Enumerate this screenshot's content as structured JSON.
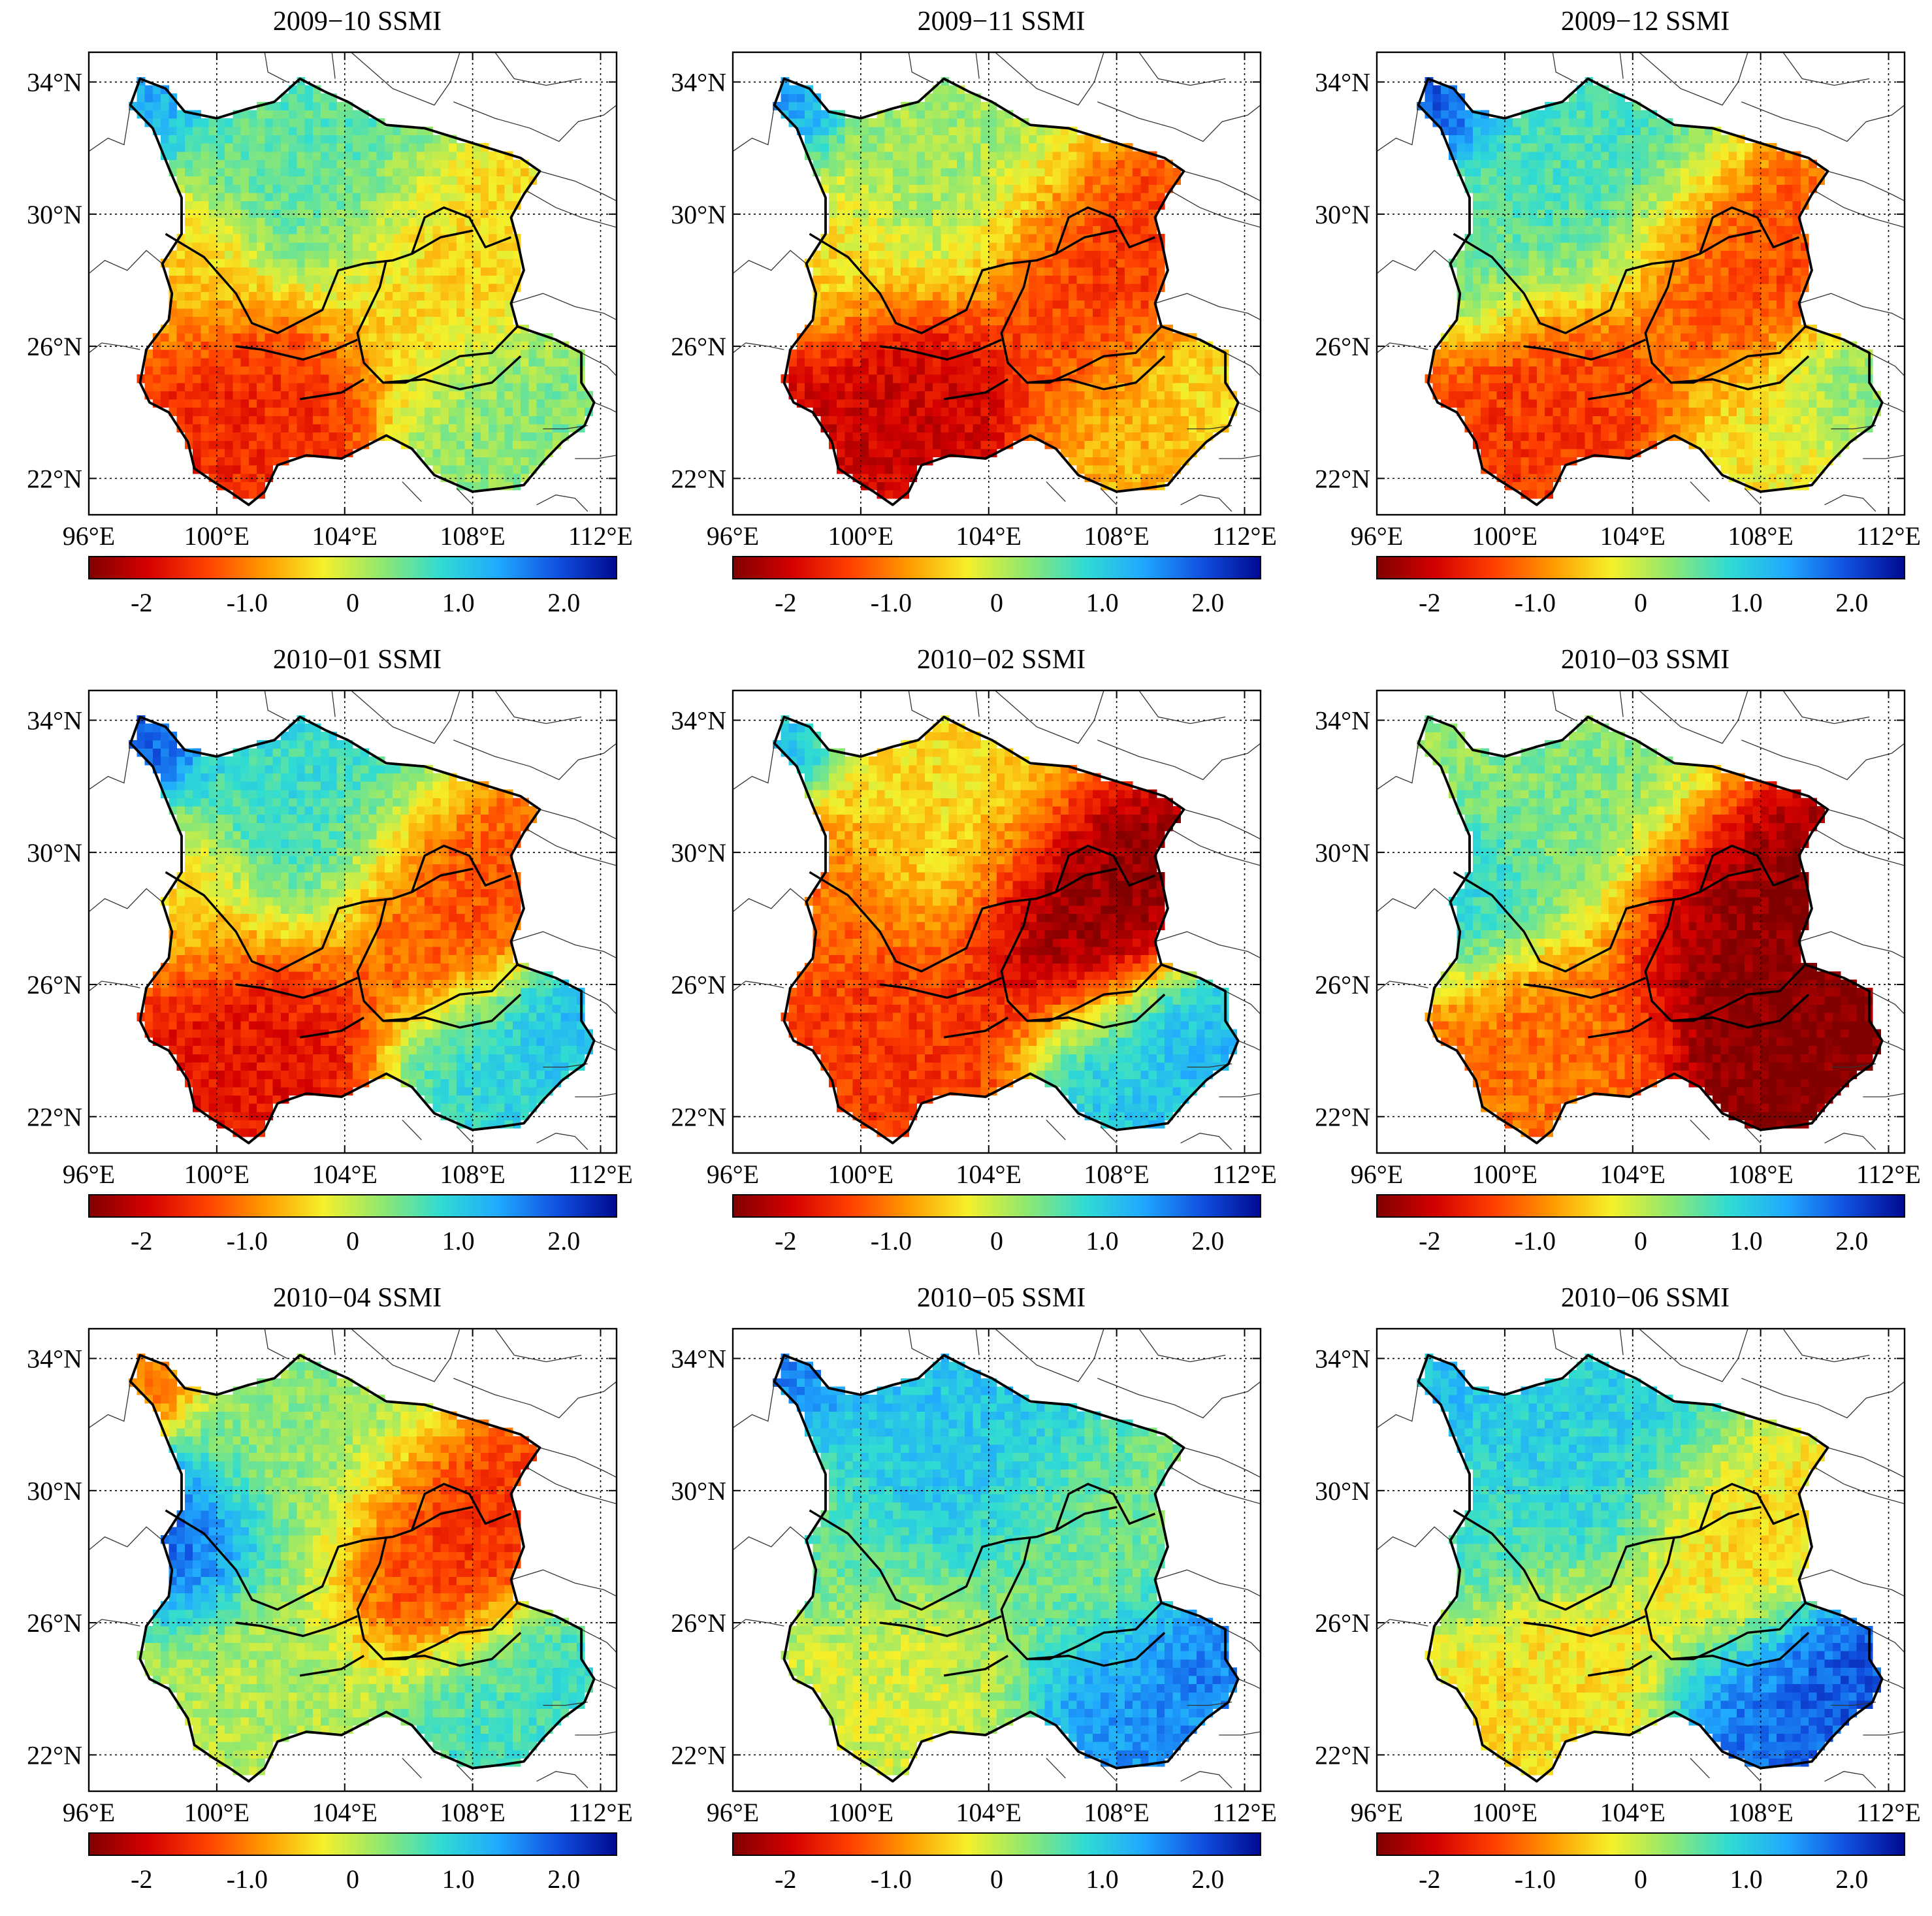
{
  "figure": {
    "lat_ticks": [
      "34°N",
      "30°N",
      "26°N",
      "22°N"
    ],
    "lon_ticks": [
      "96°E",
      "100°E",
      "104°E",
      "108°E",
      "112°E"
    ],
    "colorbar": {
      "labels": [
        "-2",
        "-1.0",
        "0",
        "1.0",
        "2.0"
      ],
      "colors": [
        "#800000",
        "#d40000",
        "#ff4000",
        "#ff9a00",
        "#f5f02a",
        "#8fe870",
        "#30dcd2",
        "#20a8ff",
        "#1050e0",
        "#000a90"
      ]
    }
  },
  "chart_data": [
    {
      "type": "heatmap",
      "title": "2009−10 SSMI",
      "lon_range": [
        96,
        112
      ],
      "lat_range": [
        21,
        35
      ],
      "colorbar_range": [
        -2.5,
        2.5
      ],
      "pattern": {
        "north": 0.6,
        "northwest_corner": 1.4,
        "west": -0.6,
        "south_west": -1.6,
        "south_east": 0.3,
        "east": -0.5,
        "east_south": 0.4
      }
    },
    {
      "type": "heatmap",
      "title": "2009−11 SSMI",
      "lon_range": [
        96,
        112
      ],
      "lat_range": [
        21,
        35
      ],
      "colorbar_range": [
        -2.5,
        2.5
      ],
      "pattern": {
        "north": 0.2,
        "northwest_corner": 1.5,
        "west": -0.4,
        "south_west": -2.0,
        "south_east": -0.7,
        "east": -1.5,
        "east_south": -0.3
      }
    },
    {
      "type": "heatmap",
      "title": "2009−12 SSMI",
      "lon_range": [
        96,
        112
      ],
      "lat_range": [
        21,
        35
      ],
      "colorbar_range": [
        -2.5,
        2.5
      ],
      "pattern": {
        "north": 0.7,
        "northwest_corner": 2.0,
        "west": 0.5,
        "south_west": -1.5,
        "south_east": -0.3,
        "east": -1.4,
        "east_south": 0.5
      }
    },
    {
      "type": "heatmap",
      "title": "2010−01 SSMI",
      "lon_range": [
        96,
        112
      ],
      "lat_range": [
        21,
        35
      ],
      "colorbar_range": [
        -2.5,
        2.5
      ],
      "pattern": {
        "north": 0.8,
        "northwest_corner": 2.0,
        "west": -0.6,
        "south_west": -1.8,
        "south_east": 0.9,
        "east": -1.4,
        "east_south": 1.3
      }
    },
    {
      "type": "heatmap",
      "title": "2010−02 SSMI",
      "lon_range": [
        96,
        112
      ],
      "lat_range": [
        21,
        35
      ],
      "colorbar_range": [
        -2.5,
        2.5
      ],
      "pattern": {
        "north": -0.4,
        "northwest_corner": 1.2,
        "west": -1.2,
        "south_west": -1.5,
        "south_east": 1.1,
        "east": -2.5,
        "east_south": 1.3
      }
    },
    {
      "type": "heatmap",
      "title": "2010−03 SSMI",
      "lon_range": [
        96,
        112
      ],
      "lat_range": [
        21,
        35
      ],
      "colorbar_range": [
        -2.5,
        2.5
      ],
      "pattern": {
        "north": 0.4,
        "northwest_corner": 0.3,
        "west": 1.0,
        "south_west": -1.1,
        "south_east": -2.5,
        "east": -2.5,
        "east_south": -2.5
      }
    },
    {
      "type": "heatmap",
      "title": "2010−04 SSMI",
      "lon_range": [
        96,
        112
      ],
      "lat_range": [
        21,
        35
      ],
      "colorbar_range": [
        -2.5,
        2.5
      ],
      "pattern": {
        "north": 0.3,
        "northwest_corner": -1.2,
        "west": 2.0,
        "south_west": 0.1,
        "south_east": 0.7,
        "east": -1.6,
        "east_south": 0.8
      }
    },
    {
      "type": "heatmap",
      "title": "2010−05 SSMI",
      "lon_range": [
        96,
        112
      ],
      "lat_range": [
        21,
        35
      ],
      "colorbar_range": [
        -2.5,
        2.5
      ],
      "pattern": {
        "north": 1.1,
        "northwest_corner": 1.6,
        "west": 0.5,
        "south_west": -0.1,
        "south_east": 1.5,
        "east": 0.4,
        "east_south": 1.7
      }
    },
    {
      "type": "heatmap",
      "title": "2010−06 SSMI",
      "lon_range": [
        96,
        112
      ],
      "lat_range": [
        21,
        35
      ],
      "colorbar_range": [
        -2.5,
        2.5
      ],
      "pattern": {
        "north": 1.0,
        "northwest_corner": 1.2,
        "west": 0.7,
        "south_west": -0.4,
        "south_east": 1.8,
        "east": -0.5,
        "east_south": 2.0
      }
    }
  ]
}
